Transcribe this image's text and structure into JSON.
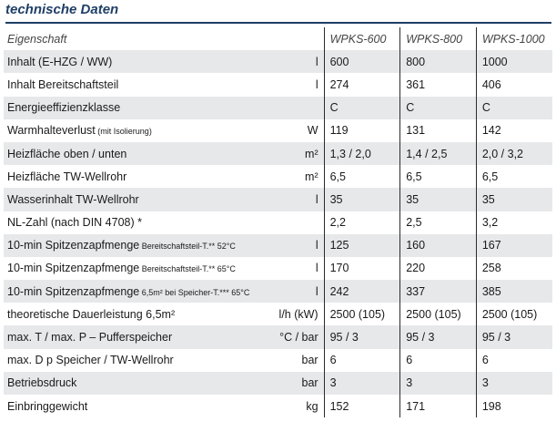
{
  "title": "technische Daten",
  "table": {
    "header": {
      "property": "Eigenschaft",
      "unit": "",
      "models": [
        "WPKS-600",
        "WPKS-800",
        "WPKS-1000"
      ]
    },
    "rows": [
      {
        "label": "Inhalt (E-HZG / WW)",
        "note": "",
        "unit": "l",
        "values": [
          "600",
          "800",
          "1000"
        ]
      },
      {
        "label": "Inhalt Bereitschaftsteil",
        "note": "",
        "unit": "l",
        "values": [
          "274",
          "361",
          "406"
        ]
      },
      {
        "label": "Energieeffizienzklasse",
        "note": "",
        "unit": "",
        "values": [
          "C",
          "C",
          "C"
        ]
      },
      {
        "label": "Warmhalteverlust",
        "note": " (mit Isolierung)",
        "unit": "W",
        "values": [
          "119",
          "131",
          "142"
        ]
      },
      {
        "label": "Heizfläche oben / unten",
        "note": "",
        "unit": "m²",
        "values": [
          "1,3 / 2,0",
          "1,4 / 2,5",
          "2,0 / 3,2"
        ]
      },
      {
        "label": "Heizfläche TW-Wellrohr",
        "note": "",
        "unit": "m²",
        "values": [
          "6,5",
          "6,5",
          "6,5"
        ]
      },
      {
        "label": "Wasserinhalt TW-Wellrohr",
        "note": "",
        "unit": "l",
        "values": [
          "35",
          "35",
          "35"
        ]
      },
      {
        "label": "NL-Zahl (nach DIN 4708) *",
        "note": "",
        "unit": "",
        "values": [
          "2,2",
          "2,5",
          "3,2"
        ]
      },
      {
        "label": "10-min Spitzenzapfmenge",
        "note": " Bereitschaftsteil-T.** 52°C",
        "unit": "l",
        "values": [
          "125",
          "160",
          "167"
        ]
      },
      {
        "label": "10-min Spitzenzapfmenge",
        "note": " Bereitschaftsteil-T.** 65°C",
        "unit": "l",
        "values": [
          "170",
          "220",
          "258"
        ]
      },
      {
        "label": "10-min Spitzenzapfmenge",
        "note": " 6,5m² bei Speicher-T.*** 65°C",
        "unit": "l",
        "values": [
          "242",
          "337",
          "385"
        ]
      },
      {
        "label": "theoretische Dauerleistung 6,5m²",
        "note": "",
        "unit": "l/h (kW)",
        "values": [
          "2500 (105)",
          "2500 (105)",
          "2500 (105)"
        ]
      },
      {
        "label": "max. T / max. P – Pufferspeicher",
        "note": "",
        "unit": "°C / bar",
        "values": [
          "95 / 3",
          "95 / 3",
          "95 / 3"
        ]
      },
      {
        "label": "max. D p Speicher / TW-Wellrohr",
        "note": "",
        "unit": "bar",
        "values": [
          "6",
          "6",
          "6"
        ]
      },
      {
        "label": "Betriebsdruck",
        "note": "",
        "unit": "bar",
        "values": [
          "3",
          "3",
          "3"
        ]
      },
      {
        "label": "Einbringgewicht",
        "note": "",
        "unit": "kg",
        "values": [
          "152",
          "171",
          "198"
        ]
      }
    ]
  }
}
